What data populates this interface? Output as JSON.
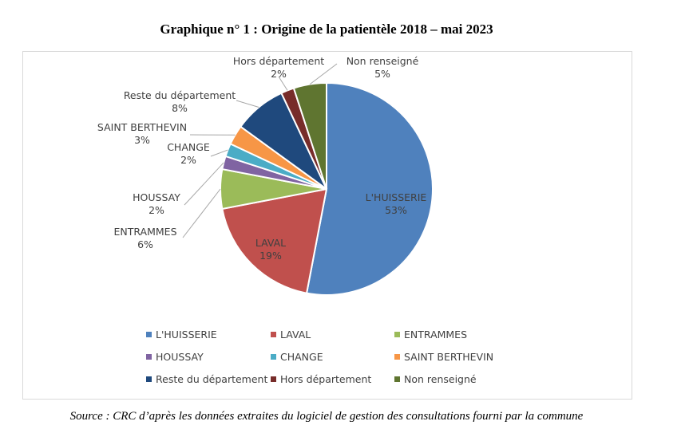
{
  "title": "Graphique n° 1 : Origine de la patientèle 2018 – mai 2023",
  "source": "Source : CRC d’après les données extraites du logiciel de gestion des consultations fourni par la commune",
  "chart_data": {
    "type": "pie",
    "categories": [
      "L'HUISSERIE",
      "LAVAL",
      "ENTRAMMES",
      "HOUSSAY",
      "CHANGE",
      "SAINT BERTHEVIN",
      "Reste du département",
      "Hors département",
      "Non renseigné"
    ],
    "values": [
      53,
      19,
      6,
      2,
      2,
      3,
      8,
      2,
      5
    ],
    "labels": [
      "53%",
      "19%",
      "6%",
      "2%",
      "2%",
      "3%",
      "8%",
      "2%",
      "5%"
    ],
    "colors": [
      "#4f81bd",
      "#c0504d",
      "#9bbb59",
      "#8064a2",
      "#4bacc6",
      "#f79646",
      "#1f497d",
      "#772c2a",
      "#5f7530"
    ],
    "legend": "bottom"
  }
}
